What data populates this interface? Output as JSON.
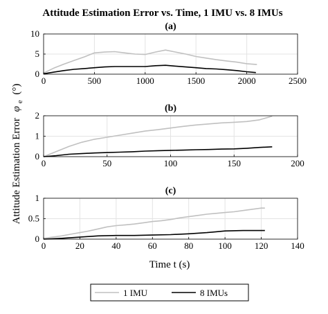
{
  "chart_data": {
    "type": "line",
    "title": "Attitude Estimation Error vs. Time, 1 IMU vs. 8 IMUs",
    "ylabel": "Attitude Estimation Error",
    "ylabel_symbol": "φ",
    "ylabel_subscript": "e",
    "ylabel_unit": "(°)",
    "xlabel": "Time t (s)",
    "legend": {
      "placement": "bottom-center",
      "entries": [
        {
          "name": "1 IMU",
          "color": "#c0c0c0"
        },
        {
          "name": "8 IMUs",
          "color": "#000000"
        }
      ]
    },
    "grid": true,
    "panels": [
      {
        "label": "(a)",
        "xlim": [
          0,
          2500
        ],
        "ylim": [
          0,
          10
        ],
        "xticks": [
          0,
          500,
          1000,
          1500,
          2000,
          2500
        ],
        "yticks": [
          0,
          5,
          10
        ],
        "series": [
          {
            "name": "1 IMU",
            "color": "#c0c0c0",
            "x": [
              0,
              100,
              200,
              300,
              400,
              500,
              600,
              700,
              800,
              900,
              1000,
              1100,
              1200,
              1300,
              1400,
              1500,
              1600,
              1700,
              1800,
              1900,
              2000,
              2100
            ],
            "y": [
              0.3,
              1.5,
              2.5,
              3.4,
              4.3,
              5.3,
              5.5,
              5.6,
              5.3,
              5.0,
              4.9,
              5.5,
              6.0,
              5.5,
              5.0,
              4.4,
              4.0,
              3.6,
              3.3,
              3.0,
              2.6,
              2.4
            ]
          },
          {
            "name": "8 IMUs",
            "color": "#000000",
            "x": [
              0,
              100,
              200,
              300,
              400,
              500,
              600,
              700,
              800,
              900,
              1000,
              1100,
              1200,
              1300,
              1400,
              1500,
              1600,
              1700,
              1800,
              1900,
              2000,
              2090
            ],
            "y": [
              0.1,
              0.5,
              0.9,
              1.2,
              1.4,
              1.6,
              1.8,
              1.9,
              1.9,
              1.9,
              1.9,
              2.1,
              2.2,
              2.0,
              1.8,
              1.6,
              1.4,
              1.3,
              1.1,
              0.9,
              0.6,
              0.4
            ]
          }
        ]
      },
      {
        "label": "(b)",
        "xlim": [
          0,
          200
        ],
        "ylim": [
          0,
          2
        ],
        "xticks": [
          0,
          50,
          100,
          150,
          200
        ],
        "yticks": [
          0,
          1,
          2
        ],
        "series": [
          {
            "name": "1 IMU",
            "color": "#c0c0c0",
            "x": [
              0,
              10,
              20,
              30,
              40,
              50,
              60,
              70,
              80,
              90,
              100,
              110,
              120,
              130,
              140,
              150,
              160,
              170,
              180
            ],
            "y": [
              0.0,
              0.25,
              0.5,
              0.7,
              0.85,
              0.95,
              1.05,
              1.15,
              1.25,
              1.32,
              1.4,
              1.48,
              1.55,
              1.6,
              1.65,
              1.68,
              1.72,
              1.8,
              1.98
            ]
          },
          {
            "name": "8 IMUs",
            "color": "#000000",
            "x": [
              0,
              10,
              20,
              30,
              40,
              50,
              60,
              70,
              80,
              90,
              100,
              110,
              120,
              130,
              140,
              150,
              160,
              170,
              180
            ],
            "y": [
              0.0,
              0.05,
              0.12,
              0.15,
              0.18,
              0.2,
              0.22,
              0.24,
              0.27,
              0.29,
              0.31,
              0.32,
              0.34,
              0.35,
              0.37,
              0.38,
              0.41,
              0.45,
              0.48
            ]
          }
        ]
      },
      {
        "label": "(c)",
        "xlim": [
          0,
          140
        ],
        "ylim": [
          0,
          1
        ],
        "xticks": [
          0,
          20,
          40,
          60,
          80,
          100,
          120,
          140
        ],
        "yticks": [
          0,
          0.5,
          1
        ],
        "series": [
          {
            "name": "1 IMU",
            "color": "#c0c0c0",
            "x": [
              0,
              5,
              10,
              15,
              20,
              25,
              30,
              35,
              40,
              45,
              50,
              55,
              60,
              65,
              70,
              75,
              80,
              85,
              90,
              95,
              100,
              105,
              110,
              115,
              120,
              122
            ],
            "y": [
              0.02,
              0.05,
              0.08,
              0.12,
              0.16,
              0.2,
              0.25,
              0.3,
              0.33,
              0.35,
              0.37,
              0.4,
              0.43,
              0.45,
              0.48,
              0.52,
              0.55,
              0.58,
              0.61,
              0.63,
              0.65,
              0.67,
              0.7,
              0.73,
              0.76,
              0.76
            ]
          },
          {
            "name": "8 IMUs",
            "color": "#000000",
            "x": [
              0,
              10,
              20,
              30,
              40,
              50,
              60,
              70,
              80,
              90,
              95,
              100,
              110,
              120,
              122
            ],
            "y": [
              0.0,
              0.02,
              0.05,
              0.08,
              0.09,
              0.09,
              0.1,
              0.11,
              0.13,
              0.16,
              0.18,
              0.2,
              0.21,
              0.21,
              0.21
            ]
          }
        ]
      }
    ]
  }
}
